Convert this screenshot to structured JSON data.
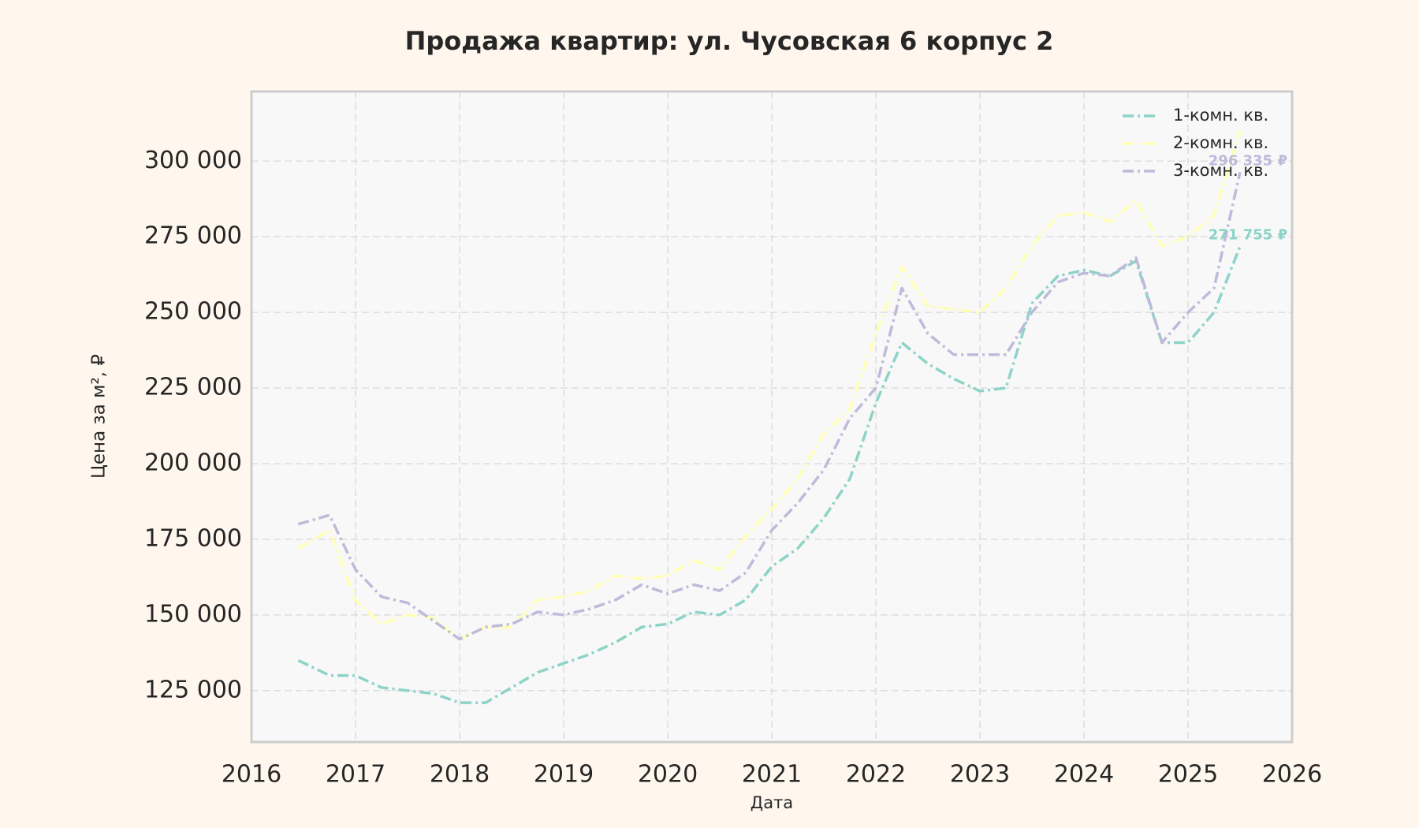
{
  "chart_data": {
    "type": "line",
    "title": "Продажа квартир: ул. Чусовская 6 корпус 2",
    "x_label": "Дата",
    "y_label": "Цена за м², ₽",
    "x": [
      2016.45,
      2016.75,
      2017.0,
      2017.25,
      2017.5,
      2017.75,
      2018.0,
      2018.25,
      2018.5,
      2018.75,
      2019.0,
      2019.25,
      2019.5,
      2019.75,
      2020.0,
      2020.25,
      2020.5,
      2020.75,
      2021.0,
      2021.25,
      2021.5,
      2021.75,
      2022.0,
      2022.25,
      2022.5,
      2022.75,
      2023.0,
      2023.25,
      2023.5,
      2023.75,
      2024.0,
      2024.25,
      2024.5,
      2024.75,
      2025.0,
      2025.25,
      2025.5
    ],
    "series": [
      {
        "name": "1-комн. кв.",
        "color": "#8dd3c7",
        "last_label": "271 755 ₽",
        "values": [
          135000,
          130000,
          130000,
          126000,
          125000,
          124000,
          121000,
          121000,
          126000,
          131000,
          134000,
          137000,
          141000,
          146000,
          147000,
          151000,
          150000,
          155000,
          166000,
          172000,
          182000,
          195000,
          220000,
          240000,
          233000,
          228000,
          224000,
          225000,
          253000,
          262000,
          264000,
          262000,
          267000,
          240000,
          240000,
          250000,
          271755
        ]
      },
      {
        "name": "2-комн. кв.",
        "color": "#ffffb3",
        "values": [
          172000,
          178000,
          155000,
          147000,
          150000,
          149000,
          142000,
          146000,
          146000,
          155000,
          156000,
          158000,
          163000,
          162000,
          163000,
          168000,
          165000,
          176000,
          185000,
          195000,
          210000,
          218000,
          243000,
          265000,
          252000,
          251000,
          250000,
          258000,
          272000,
          282000,
          283000,
          280000,
          287000,
          272000,
          275000,
          282000,
          310000
        ]
      },
      {
        "name": "3-комн. кв.",
        "color": "#bebada",
        "last_label": "296 335 ₽",
        "values": [
          180000,
          183000,
          165000,
          156000,
          154000,
          148000,
          142000,
          146000,
          147000,
          151000,
          150000,
          152000,
          155000,
          160000,
          157000,
          160000,
          158000,
          164000,
          178000,
          187000,
          198000,
          215000,
          225000,
          258000,
          243000,
          236000,
          236000,
          236000,
          250000,
          260000,
          263000,
          262000,
          268000,
          240000,
          250000,
          258000,
          296335
        ]
      }
    ],
    "xlim": [
      2016,
      2026
    ],
    "xticks": [
      2016,
      2017,
      2018,
      2019,
      2020,
      2021,
      2022,
      2023,
      2024,
      2025,
      2026
    ],
    "ylim": [
      108000,
      323000
    ],
    "yticks": [
      {
        "value": 125000,
        "label": "125 000"
      },
      {
        "value": 150000,
        "label": "150 000"
      },
      {
        "value": 175000,
        "label": "175 000"
      },
      {
        "value": 200000,
        "label": "200 000"
      },
      {
        "value": 225000,
        "label": "225 000"
      },
      {
        "value": 250000,
        "label": "250 000"
      },
      {
        "value": 275000,
        "label": "275 000"
      },
      {
        "value": 300000,
        "label": "300 000"
      }
    ],
    "grid": true,
    "legend": "upper right"
  }
}
